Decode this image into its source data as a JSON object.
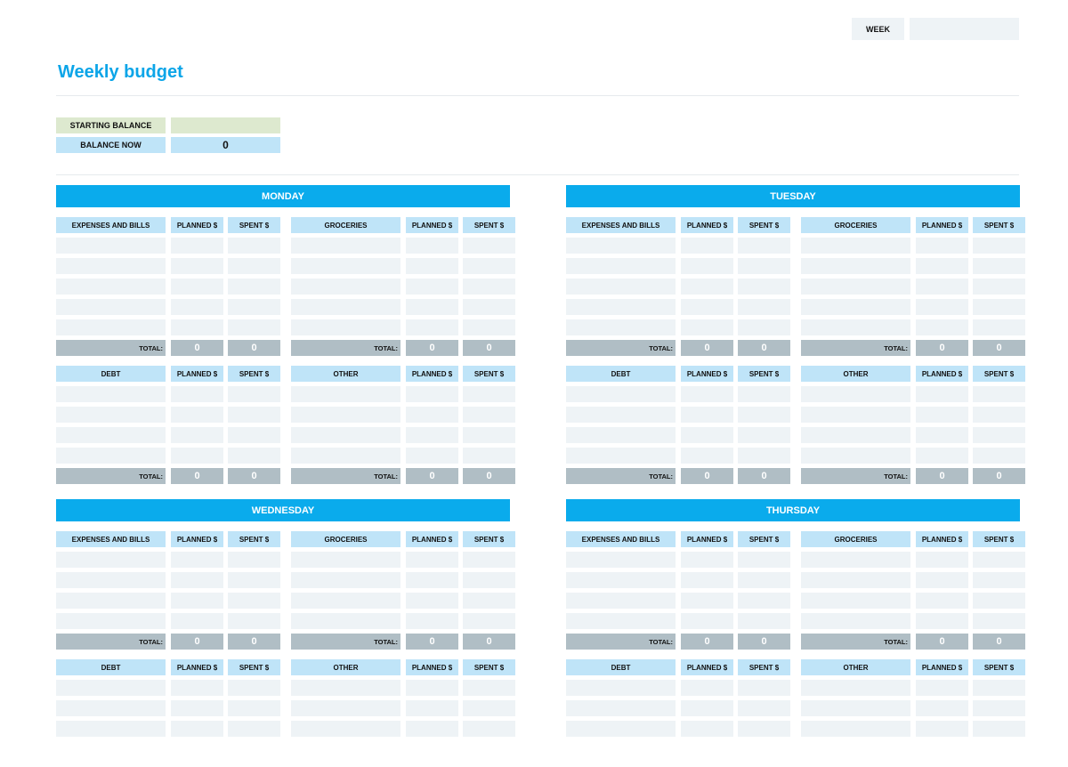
{
  "header": {
    "week_label": "WEEK",
    "week_value": "",
    "title": "Weekly budget"
  },
  "balance": {
    "starting_label": "STARTING BALANCE",
    "starting_value": "",
    "now_label": "BALANCE NOW",
    "now_value": "0"
  },
  "columns": {
    "planned": "PLANNED $",
    "spent": "SPENT $",
    "total": "TOTAL:"
  },
  "categories": {
    "expenses": "EXPENSES AND BILLS",
    "groceries": "GROCERIES",
    "debt": "DEBT",
    "other": "OTHER"
  },
  "days": [
    {
      "name": "MONDAY",
      "totals": {
        "expenses": [
          "0",
          "0"
        ],
        "groceries": [
          "0",
          "0"
        ],
        "debt": [
          "0",
          "0"
        ],
        "other": [
          "0",
          "0"
        ]
      }
    },
    {
      "name": "TUESDAY",
      "totals": {
        "expenses": [
          "0",
          "0"
        ],
        "groceries": [
          "0",
          "0"
        ],
        "debt": [
          "0",
          "0"
        ],
        "other": [
          "0",
          "0"
        ]
      }
    },
    {
      "name": "WEDNESDAY",
      "totals": {
        "expenses": [
          "0",
          "0"
        ],
        "groceries": [
          "0",
          "0"
        ]
      }
    },
    {
      "name": "THURSDAY",
      "totals": {
        "expenses": [
          "0",
          "0"
        ],
        "groceries": [
          "0",
          "0"
        ]
      }
    }
  ],
  "colors": {
    "accent": "#0aabec",
    "title": "#0ba5e8",
    "header_cell": "#bfe4f8",
    "blank_cell": "#eef3f6",
    "total_row": "#b0bec5",
    "starting_balance": "#dde9cf"
  }
}
